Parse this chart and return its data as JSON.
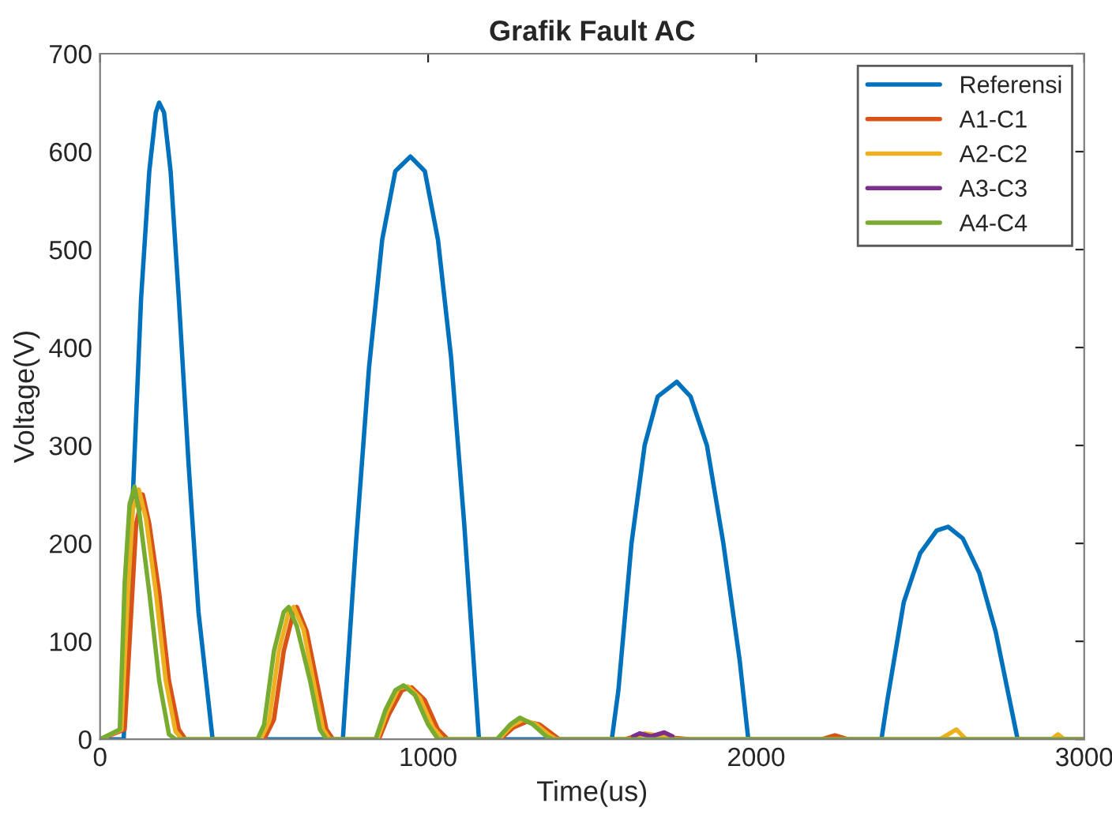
{
  "chart_data": {
    "type": "line",
    "title": "Grafik Fault AC",
    "xlabel": "Time(us)",
    "ylabel": "Voltage(V)",
    "xlim": [
      0,
      3000
    ],
    "xticks": [
      0,
      1000,
      2000,
      3000
    ],
    "ylim": [
      0,
      700
    ],
    "yticks": [
      0,
      100,
      200,
      300,
      400,
      500,
      600,
      700
    ],
    "grid": false,
    "legend": "top right",
    "line_style": "solid",
    "marker": "none",
    "series": [
      {
        "name": "Referensi",
        "color": "#0072bd",
        "x": [
          0,
          72,
          100,
          125,
          150,
          170,
          180,
          195,
          215,
          240,
          270,
          300,
          343,
          740,
          780,
          820,
          860,
          900,
          946,
          990,
          1030,
          1070,
          1110,
          1155,
          1560,
          1580,
          1620,
          1660,
          1700,
          1758,
          1800,
          1850,
          1900,
          1950,
          1976,
          2382,
          2400,
          2450,
          2500,
          2550,
          2585,
          2630,
          2680,
          2730,
          2797,
          3000
        ],
        "values": [
          0,
          0,
          250,
          450,
          580,
          640,
          650,
          640,
          580,
          450,
          280,
          130,
          0,
          0,
          200,
          380,
          510,
          580,
          595,
          580,
          510,
          390,
          220,
          0,
          0,
          50,
          200,
          300,
          350,
          365,
          350,
          300,
          200,
          80,
          0,
          0,
          40,
          140,
          190,
          213,
          217,
          205,
          170,
          110,
          0,
          0
        ]
      },
      {
        "name": "A1-C1",
        "color": "#d95319",
        "x": [
          0,
          75,
          95,
          110,
          130,
          150,
          180,
          210,
          240,
          260,
          500,
          530,
          560,
          590,
          600,
          630,
          660,
          690,
          710,
          850,
          880,
          920,
          950,
          990,
          1030,
          1060,
          1220,
          1260,
          1300,
          1340,
          1380,
          1400,
          1600,
          1650,
          1700,
          1800,
          2200,
          2240,
          2280,
          3000
        ],
        "values": [
          0,
          10,
          130,
          220,
          250,
          220,
          150,
          60,
          10,
          0,
          0,
          20,
          90,
          130,
          135,
          110,
          60,
          10,
          0,
          0,
          25,
          50,
          53,
          40,
          10,
          0,
          0,
          12,
          18,
          15,
          5,
          0,
          0,
          5,
          3,
          0,
          0,
          4,
          0,
          0
        ]
      },
      {
        "name": "A2-C2",
        "color": "#edb120",
        "x": [
          0,
          65,
          85,
          100,
          118,
          140,
          170,
          200,
          230,
          250,
          490,
          515,
          545,
          575,
          590,
          620,
          650,
          680,
          700,
          845,
          875,
          910,
          938,
          975,
          1015,
          1045,
          1215,
          1255,
          1290,
          1330,
          1370,
          1390,
          1620,
          1660,
          1700,
          1760,
          2560,
          2610,
          2640,
          2900,
          2920,
          2940,
          3000
        ],
        "values": [
          0,
          10,
          150,
          235,
          255,
          225,
          150,
          60,
          8,
          0,
          0,
          18,
          90,
          130,
          135,
          112,
          60,
          10,
          0,
          0,
          28,
          52,
          54,
          42,
          12,
          0,
          0,
          14,
          20,
          15,
          4,
          0,
          0,
          6,
          4,
          0,
          0,
          10,
          0,
          0,
          5,
          0,
          0
        ]
      },
      {
        "name": "A3-C3",
        "color": "#7e2f8e",
        "x": [
          1625,
          1645,
          1680,
          1720,
          1745
        ],
        "values": [
          3,
          6,
          3,
          7,
          3
        ]
      },
      {
        "name": "A4-C4",
        "color": "#77ac30",
        "x": [
          0,
          60,
          75,
          90,
          105,
          120,
          150,
          180,
          210,
          230,
          480,
          500,
          530,
          560,
          575,
          600,
          640,
          670,
          690,
          840,
          870,
          900,
          925,
          960,
          1000,
          1030,
          1210,
          1250,
          1280,
          1320,
          1360,
          1380,
          3000
        ],
        "values": [
          0,
          10,
          160,
          240,
          258,
          230,
          150,
          60,
          5,
          0,
          0,
          15,
          90,
          130,
          135,
          115,
          60,
          10,
          0,
          0,
          30,
          50,
          55,
          45,
          15,
          0,
          0,
          15,
          22,
          15,
          3,
          0,
          0
        ]
      }
    ]
  }
}
